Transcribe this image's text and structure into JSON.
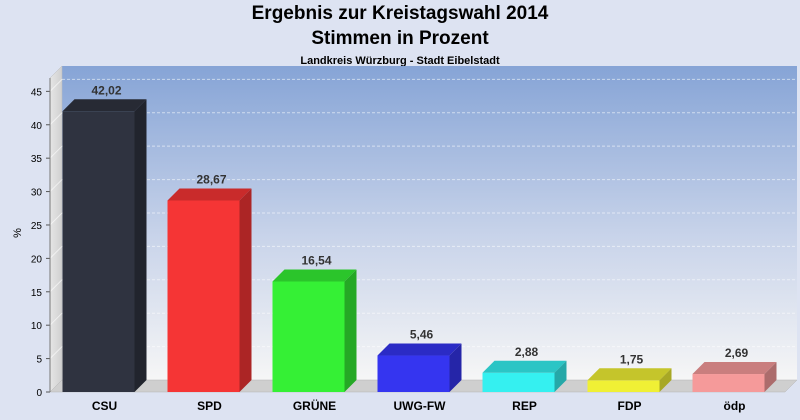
{
  "chart_data": {
    "type": "bar",
    "title": "Ergebnis zur Kreistagswahl 2014",
    "subtitle_line": "Stimmen in Prozent",
    "region": "Landkreis Würzburg - Stadt Eibelstadt",
    "ylabel": "%",
    "xlabel": "",
    "ylim": [
      0,
      47
    ],
    "yticks": [
      0,
      5,
      10,
      15,
      20,
      25,
      30,
      35,
      40,
      45
    ],
    "grid": true,
    "categories": [
      "CSU",
      "SPD",
      "GRÜNE",
      "UWG-FW",
      "REP",
      "FDP",
      "ödp"
    ],
    "values": [
      42.02,
      28.67,
      16.54,
      5.46,
      2.88,
      1.75,
      2.69
    ],
    "value_labels": [
      "42,02",
      "28,67",
      "16,54",
      "5,46",
      "2,88",
      "1,75",
      "2,69"
    ],
    "colors": [
      "#2f3340",
      "#f53535",
      "#35f035",
      "#3535f0",
      "#35f0f0",
      "#f0f035",
      "#f59a9a"
    ]
  }
}
